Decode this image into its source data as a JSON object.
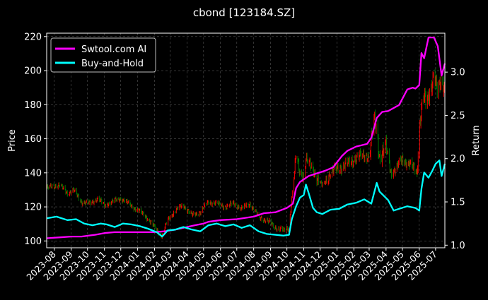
{
  "chart_data": {
    "type": "line",
    "title": "cbond [123184.SZ]",
    "ylabel_left": "Price",
    "ylabel_right": "Return",
    "ylim_left": [
      96,
      222
    ],
    "ylim_right": [
      0.97,
      3.45
    ],
    "yticks_left": [
      100,
      120,
      140,
      160,
      180,
      200,
      220
    ],
    "yticks_right": [
      "1.0",
      "1.5",
      "2.0",
      "2.5",
      "3.0"
    ],
    "xlim": [
      "2023-07-18",
      "2025-07-18"
    ],
    "x_tick_labels": [
      "2023-08",
      "2023-09",
      "2023-10",
      "2023-11",
      "2023-12",
      "2024-01",
      "2024-02",
      "2024-03",
      "2024-04",
      "2024-05",
      "2024-06",
      "2024-07",
      "2024-08",
      "2024-09",
      "2024-10",
      "2024-11",
      "2024-12",
      "2025-01",
      "2025-02",
      "2025-03",
      "2025-04",
      "2025-05",
      "2025-06",
      "2025-07"
    ],
    "grid": true,
    "legend_position": "top-left",
    "background": "#000000",
    "colors": {
      "ai": "#ff00ff",
      "hold": "#00ffff",
      "up": "#ff0000",
      "down": "#008000",
      "grid": "#555555"
    },
    "series": [
      {
        "name": "Swtool.com AI",
        "axis": "right",
        "x": [
          "2023-07-18",
          "2023-08-10",
          "2023-09-01",
          "2023-09-20",
          "2023-10-15",
          "2023-11-01",
          "2023-11-20",
          "2023-12-15",
          "2024-01-10",
          "2024-01-30",
          "2024-02-20",
          "2024-03-10",
          "2024-03-25",
          "2024-04-15",
          "2024-05-01",
          "2024-05-10",
          "2024-06-01",
          "2024-07-01",
          "2024-08-01",
          "2024-08-20",
          "2024-09-10",
          "2024-10-01",
          "2024-10-12",
          "2024-10-18",
          "2024-10-25",
          "2024-11-10",
          "2024-11-25",
          "2024-12-10",
          "2024-12-25",
          "2025-01-10",
          "2025-01-20",
          "2025-02-05",
          "2025-02-25",
          "2025-03-05",
          "2025-03-15",
          "2025-03-25",
          "2025-04-05",
          "2025-04-25",
          "2025-05-10",
          "2025-05-20",
          "2025-05-25",
          "2025-06-01",
          "2025-06-05",
          "2025-06-10",
          "2025-06-18",
          "2025-06-28",
          "2025-07-05",
          "2025-07-12",
          "2025-07-18"
        ],
        "values": [
          1.08,
          1.09,
          1.1,
          1.1,
          1.12,
          1.14,
          1.15,
          1.15,
          1.15,
          1.15,
          1.16,
          1.18,
          1.2,
          1.23,
          1.25,
          1.27,
          1.29,
          1.3,
          1.33,
          1.37,
          1.38,
          1.43,
          1.48,
          1.66,
          1.73,
          1.8,
          1.83,
          1.86,
          1.9,
          2.03,
          2.09,
          2.14,
          2.17,
          2.24,
          2.47,
          2.54,
          2.55,
          2.62,
          2.8,
          2.82,
          2.81,
          2.85,
          3.22,
          3.16,
          3.4,
          3.4,
          3.3,
          2.96,
          3.1
        ]
      },
      {
        "name": "Buy-and-Hold",
        "axis": "right",
        "x": [
          "2023-07-18",
          "2023-08-05",
          "2023-08-25",
          "2023-09-10",
          "2023-09-25",
          "2023-10-10",
          "2023-10-25",
          "2023-11-05",
          "2023-11-20",
          "2023-12-05",
          "2023-12-20",
          "2024-01-05",
          "2024-01-20",
          "2024-02-05",
          "2024-02-15",
          "2024-02-25",
          "2024-03-10",
          "2024-03-25",
          "2024-04-10",
          "2024-04-25",
          "2024-05-10",
          "2024-05-25",
          "2024-06-10",
          "2024-06-25",
          "2024-07-10",
          "2024-07-25",
          "2024-08-10",
          "2024-08-25",
          "2024-09-10",
          "2024-09-25",
          "2024-10-05",
          "2024-10-10",
          "2024-10-18",
          "2024-10-25",
          "2024-11-01",
          "2024-11-05",
          "2024-11-10",
          "2024-11-18",
          "2024-11-25",
          "2024-12-05",
          "2024-12-20",
          "2025-01-05",
          "2025-01-20",
          "2025-02-05",
          "2025-02-20",
          "2025-03-05",
          "2025-03-15",
          "2025-03-20",
          "2025-04-05",
          "2025-04-15",
          "2025-04-25",
          "2025-05-10",
          "2025-05-25",
          "2025-06-01",
          "2025-06-05",
          "2025-06-10",
          "2025-06-18",
          "2025-06-25",
          "2025-07-01",
          "2025-07-08",
          "2025-07-12",
          "2025-07-18"
        ],
        "values": [
          1.31,
          1.33,
          1.29,
          1.3,
          1.25,
          1.23,
          1.25,
          1.24,
          1.21,
          1.25,
          1.24,
          1.22,
          1.19,
          1.15,
          1.1,
          1.17,
          1.18,
          1.21,
          1.18,
          1.16,
          1.23,
          1.25,
          1.22,
          1.24,
          1.2,
          1.23,
          1.16,
          1.13,
          1.12,
          1.11,
          1.12,
          1.3,
          1.45,
          1.55,
          1.58,
          1.7,
          1.6,
          1.43,
          1.38,
          1.36,
          1.41,
          1.42,
          1.47,
          1.49,
          1.53,
          1.48,
          1.72,
          1.62,
          1.52,
          1.4,
          1.42,
          1.45,
          1.43,
          1.4,
          1.65,
          1.84,
          1.78,
          1.86,
          1.94,
          1.98,
          1.8,
          1.94
        ]
      },
      {
        "name": "Price",
        "axis": "left",
        "x": [
          "2023-07-18",
          "2023-08-10",
          "2023-08-25",
          "2023-09-05",
          "2023-09-20",
          "2023-10-05",
          "2023-10-20",
          "2023-11-01",
          "2023-11-15",
          "2023-12-01",
          "2023-12-15",
          "2024-01-01",
          "2024-01-15",
          "2024-02-01",
          "2024-02-15",
          "2024-02-25",
          "2024-03-10",
          "2024-03-25",
          "2024-04-10",
          "2024-04-25",
          "2024-05-10",
          "2024-05-25",
          "2024-06-10",
          "2024-06-25",
          "2024-07-10",
          "2024-07-25",
          "2024-08-10",
          "2024-08-25",
          "2024-09-10",
          "2024-09-25",
          "2024-10-05",
          "2024-10-10",
          "2024-10-18",
          "2024-10-25",
          "2024-11-01",
          "2024-11-05",
          "2024-11-10",
          "2024-11-18",
          "2024-11-25",
          "2024-12-05",
          "2024-12-20",
          "2025-01-05",
          "2025-01-20",
          "2025-02-05",
          "2025-02-20",
          "2025-03-01",
          "2025-03-10",
          "2025-03-15",
          "2025-03-20",
          "2025-04-01",
          "2025-04-10",
          "2025-04-20",
          "2025-05-01",
          "2025-05-15",
          "2025-05-28",
          "2025-06-02",
          "2025-06-08",
          "2025-06-15",
          "2025-06-22",
          "2025-06-28",
          "2025-07-05",
          "2025-07-12",
          "2025-07-18"
        ],
        "values": [
          131,
          133,
          128,
          130,
          123,
          122,
          125,
          121,
          123,
          125,
          122,
          118,
          115,
          108,
          103,
          112,
          118,
          121,
          115,
          117,
          123,
          122,
          120,
          122,
          119,
          122,
          114,
          112,
          108,
          106,
          108,
          125,
          150,
          140,
          138,
          148,
          145,
          142,
          137,
          132,
          140,
          143,
          145,
          149,
          150,
          150,
          170,
          165,
          150,
          155,
          140,
          143,
          148,
          145,
          140,
          170,
          185,
          180,
          190,
          200,
          185,
          195,
          190
        ]
      }
    ]
  }
}
